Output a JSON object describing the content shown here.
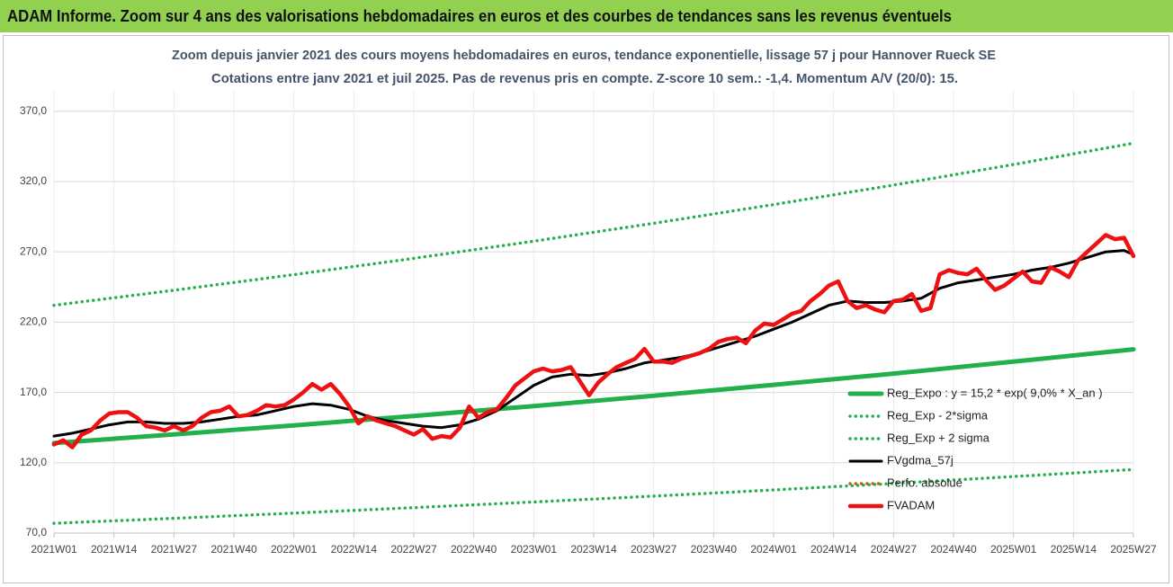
{
  "header": {
    "title": "ADAM Informe. Zoom sur 4 ans des valorisations hebdomadaires en euros et des courbes de tendances sans les revenus éventuels"
  },
  "chart_data": {
    "type": "line",
    "title": "Zoom depuis janvier 2021 des cours moyens hebdomadaires en euros, tendance exponentielle, lissage 57 j pour Hannover Rueck SE",
    "subtitle": "Cotations entre janv 2021 et juil 2025. Pas de revenus pris en compte. Z-score 10 sem.: -1,4. Momentum A/V (20/0): 15.",
    "xlim": [
      0,
      234
    ],
    "xticks": [
      {
        "value": 0,
        "label": "2021W01"
      },
      {
        "value": 13,
        "label": "2021W14"
      },
      {
        "value": 26,
        "label": "2021W27"
      },
      {
        "value": 39,
        "label": "2021W40"
      },
      {
        "value": 52,
        "label": "2022W01"
      },
      {
        "value": 65,
        "label": "2022W14"
      },
      {
        "value": 78,
        "label": "2022W27"
      },
      {
        "value": 91,
        "label": "2022W40"
      },
      {
        "value": 104,
        "label": "2023W01"
      },
      {
        "value": 117,
        "label": "2023W14"
      },
      {
        "value": 130,
        "label": "2023W27"
      },
      {
        "value": 143,
        "label": "2023W40"
      },
      {
        "value": 156,
        "label": "2024W01"
      },
      {
        "value": 169,
        "label": "2024W14"
      },
      {
        "value": 182,
        "label": "2024W27"
      },
      {
        "value": 195,
        "label": "2024W40"
      },
      {
        "value": 208,
        "label": "2025W01"
      },
      {
        "value": 221,
        "label": "2025W14"
      },
      {
        "value": 234,
        "label": "2025W27"
      }
    ],
    "ylim": [
      70,
      385
    ],
    "yticks": [
      {
        "value": 70,
        "label": "70,0"
      },
      {
        "value": 120,
        "label": "120,0"
      },
      {
        "value": 170,
        "label": "170,0"
      },
      {
        "value": 220,
        "label": "220,0"
      },
      {
        "value": 270,
        "label": "270,0"
      },
      {
        "value": 320,
        "label": "320,0"
      },
      {
        "value": 370,
        "label": "370,0"
      }
    ],
    "grid": true,
    "legend": "lower right",
    "series": [
      {
        "name": "Reg_Expo : y = 15,2 * exp( 9,0% *  X_an )",
        "color": "#22b04b",
        "style": "solid",
        "width": 5,
        "x": [
          0,
          26,
          52,
          78,
          104,
          130,
          156,
          182,
          208,
          234
        ],
        "values": [
          134.0,
          140.2,
          146.6,
          153.3,
          160.3,
          167.7,
          175.4,
          183.4,
          191.9,
          200.7
        ]
      },
      {
        "name": "Reg_Exp - 2*sigma",
        "color": "#22b04b",
        "style": "dotted",
        "width": 3.5,
        "x": [
          0,
          26,
          52,
          78,
          104,
          130,
          156,
          182,
          208,
          234
        ],
        "values": [
          77.0,
          80.5,
          84.2,
          88.1,
          92.1,
          96.3,
          100.7,
          105.3,
          110.2,
          115.2
        ]
      },
      {
        "name": "Reg_Exp + 2 sigma",
        "color": "#22b04b",
        "style": "dotted",
        "width": 3.5,
        "x": [
          0,
          26,
          52,
          78,
          104,
          130,
          156,
          182,
          208,
          234
        ],
        "values": [
          232.0,
          242.7,
          253.8,
          265.4,
          277.6,
          290.3,
          303.6,
          317.5,
          332.1,
          347.3
        ]
      },
      {
        "name": "FVgdma_57j",
        "color": "#000000",
        "style": "solid",
        "width": 3,
        "x": [
          0,
          4,
          8,
          12,
          16,
          20,
          24,
          28,
          32,
          36,
          40,
          44,
          48,
          52,
          56,
          60,
          64,
          68,
          72,
          76,
          80,
          84,
          88,
          92,
          96,
          100,
          104,
          108,
          112,
          116,
          120,
          124,
          128,
          132,
          136,
          140,
          144,
          148,
          152,
          156,
          160,
          164,
          168,
          172,
          176,
          180,
          184,
          188,
          192,
          196,
          200,
          204,
          208,
          212,
          216,
          220,
          224,
          228,
          232,
          234
        ],
        "values": [
          139,
          141,
          144,
          147,
          149,
          149,
          148,
          148,
          149,
          151,
          153,
          154,
          157,
          160,
          162,
          161,
          158,
          153,
          150,
          148,
          146,
          145,
          147,
          151,
          157,
          166,
          175,
          181,
          183,
          182,
          184,
          187,
          191,
          193,
          195,
          198,
          202,
          206,
          210,
          215,
          220,
          226,
          232,
          235,
          234,
          234,
          235,
          237,
          244,
          248,
          250,
          252,
          254,
          257,
          259,
          262,
          266,
          270,
          271,
          268
        ]
      },
      {
        "name": "Perfo. absolue",
        "color": "#c55a11",
        "style": "dotted",
        "width": 3.5,
        "x": [],
        "values": []
      },
      {
        "name": "FVADAM",
        "color": "#ee1111",
        "style": "solid",
        "width": 4.5,
        "x": [
          0,
          2,
          4,
          6,
          8,
          10,
          12,
          14,
          16,
          18,
          20,
          22,
          24,
          26,
          28,
          30,
          32,
          34,
          36,
          38,
          40,
          42,
          44,
          46,
          48,
          50,
          52,
          54,
          56,
          58,
          60,
          62,
          64,
          66,
          68,
          70,
          72,
          74,
          76,
          78,
          80,
          82,
          84,
          86,
          88,
          90,
          92,
          94,
          96,
          98,
          100,
          102,
          104,
          106,
          108,
          110,
          112,
          114,
          116,
          118,
          120,
          122,
          124,
          126,
          128,
          130,
          132,
          134,
          136,
          138,
          140,
          142,
          144,
          146,
          148,
          150,
          152,
          154,
          156,
          158,
          160,
          162,
          164,
          166,
          168,
          170,
          172,
          174,
          176,
          178,
          180,
          182,
          184,
          186,
          188,
          190,
          192,
          194,
          196,
          198,
          200,
          202,
          204,
          206,
          208,
          210,
          212,
          214,
          216,
          218,
          220,
          222,
          224,
          226,
          228,
          230,
          232,
          234
        ],
        "values": [
          133,
          136,
          131,
          140,
          143,
          150,
          155,
          156,
          156,
          152,
          146,
          145,
          143,
          146,
          143,
          146,
          152,
          156,
          157,
          160,
          153,
          154,
          157,
          161,
          160,
          161,
          165,
          170,
          176,
          172,
          176,
          169,
          160,
          148,
          153,
          150,
          148,
          146,
          143,
          140,
          144,
          137,
          139,
          138,
          145,
          160,
          152,
          156,
          158,
          166,
          175,
          180,
          185,
          187,
          185,
          186,
          188,
          178,
          168,
          177,
          183,
          188,
          191,
          194,
          201,
          192,
          192,
          191,
          194,
          196,
          198,
          201,
          206,
          208,
          209,
          205,
          214,
          219,
          218,
          222,
          226,
          228,
          235,
          240,
          246,
          249,
          235,
          230,
          232,
          229,
          227,
          235,
          236,
          240,
          228,
          230,
          254,
          257,
          255,
          254,
          258,
          250,
          243,
          246,
          251,
          256,
          249,
          248,
          259,
          256,
          252,
          264,
          270,
          276,
          282,
          279,
          280,
          267
        ]
      }
    ]
  }
}
